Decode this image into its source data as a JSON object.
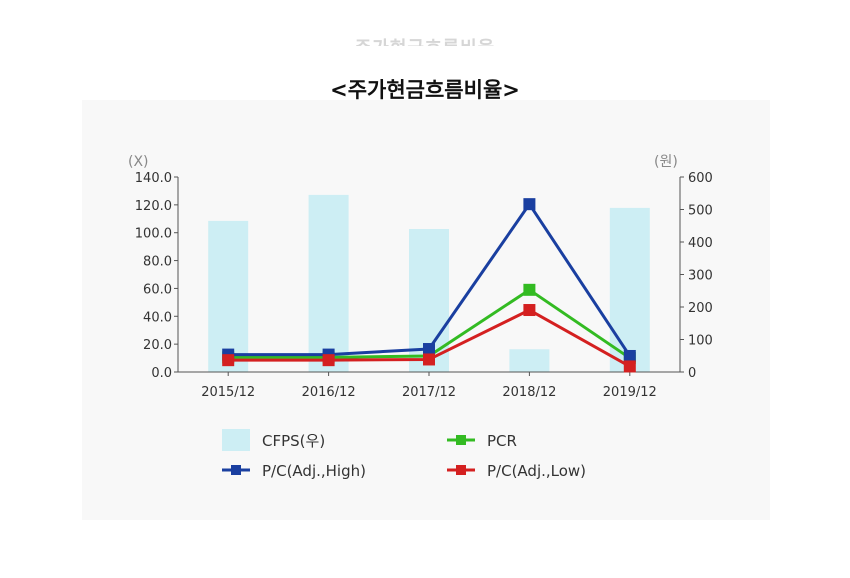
{
  "page": {
    "ghost_title": "주가현금흐름비율",
    "title": "<주가현금흐름비율>"
  },
  "chart_data": {
    "type": "bar",
    "title": "<주가현금흐름비율>",
    "categories": [
      "2015/12",
      "2016/12",
      "2017/12",
      "2018/12",
      "2019/12"
    ],
    "y_left": {
      "unit_label": "(X)",
      "range": [
        0,
        140
      ],
      "ticks": [
        "0.0",
        "20.0",
        "40.0",
        "60.0",
        "80.0",
        "100.0",
        "120.0",
        "140.0"
      ]
    },
    "y_right": {
      "unit_label": "(원)",
      "range": [
        0,
        600
      ],
      "ticks": [
        "0",
        "100",
        "200",
        "300",
        "400",
        "500",
        "600"
      ]
    },
    "series": [
      {
        "name": "CFPS(우)",
        "kind": "bar",
        "axis": "right",
        "color": "#cdeef4",
        "values": [
          465,
          545,
          440,
          70,
          505
        ]
      },
      {
        "name": "PCR",
        "kind": "line",
        "axis": "left",
        "color": "#33bb22",
        "values": [
          10.5,
          10.5,
          11.5,
          59.0,
          10.0
        ]
      },
      {
        "name": "P/C(Adj.,High)",
        "kind": "line",
        "axis": "left",
        "color": "#1a3fa0",
        "values": [
          12.5,
          12.5,
          16.5,
          120.5,
          11.5
        ]
      },
      {
        "name": "P/C(Adj.,Low)",
        "kind": "line",
        "axis": "left",
        "color": "#d42020",
        "values": [
          8.5,
          8.5,
          9.0,
          44.5,
          4.0
        ]
      }
    ],
    "legend": {
      "placement": "bottom",
      "order": [
        "CFPS(우)",
        "PCR",
        "P/C(Adj.,High)",
        "P/C(Adj.,Low)"
      ]
    },
    "grid": false
  }
}
